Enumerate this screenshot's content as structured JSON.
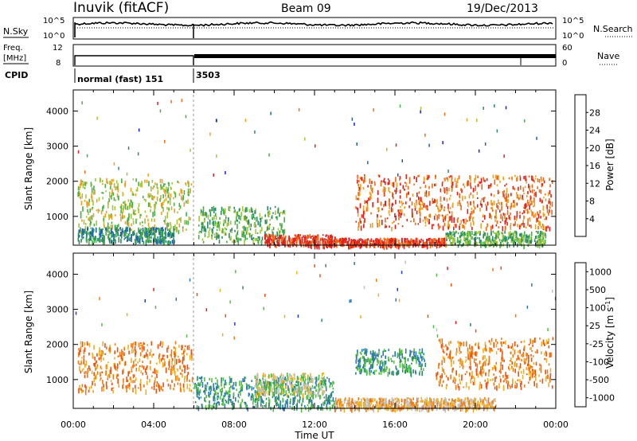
{
  "header": {
    "station": "Inuvik (fitACF)",
    "beam": "Beam 09",
    "date": "19/Dec/2013"
  },
  "top_panels": {
    "nsky_label": "N.Sky",
    "nsky_ticks": [
      "10^5",
      "10^0"
    ],
    "nsearch_label": "N.Search",
    "nsearch_ticks": [
      "10^5",
      "10^0"
    ],
    "freq_label_1": "Freq.",
    "freq_label_2": "[MHz]",
    "freq_ticks": [
      "12",
      "8"
    ],
    "nave_label": "Nave",
    "nave_ticks": [
      "60",
      "0"
    ],
    "cpid_label": "CPID",
    "cpid_segments": [
      "normal (fast) 151",
      "3503"
    ]
  },
  "chart_data": [
    {
      "type": "heatmap",
      "title": "",
      "xlabel": "Time UT",
      "ylabel": "Slant Range [km]",
      "xlim": [
        "00:00",
        "00:00"
      ],
      "xticks": [
        "00:00",
        "04:00",
        "08:00",
        "12:00",
        "16:00",
        "20:00",
        "00:00"
      ],
      "ylim": [
        180,
        4600
      ],
      "yticks": [
        "1000",
        "2000",
        "3000",
        "4000"
      ],
      "colorbar": {
        "label": "Power [dB]",
        "ticks": [
          "4",
          "8",
          "12",
          "16",
          "20",
          "24",
          "28"
        ],
        "colors": [
          "#1b1be8",
          "#1f5fb0",
          "#2e8a66",
          "#44b244",
          "#a8c43a",
          "#f0a020",
          "#f06a14",
          "#e02020"
        ]
      },
      "scatter_regions": [
        {
          "t0": 0.2,
          "t1": 5.9,
          "r0": 600,
          "r1": 2100,
          "level": 4
        },
        {
          "t0": 0.2,
          "t1": 5.0,
          "r0": 300,
          "r1": 700,
          "level": 2
        },
        {
          "t0": 6.2,
          "t1": 10.5,
          "r0": 300,
          "r1": 1300,
          "level": 3
        },
        {
          "t0": 9.5,
          "t1": 13.0,
          "r0": 200,
          "r1": 500,
          "level": 7
        },
        {
          "t0": 12.5,
          "t1": 18.5,
          "r0": 200,
          "r1": 400,
          "level": 7
        },
        {
          "t0": 14.0,
          "t1": 23.8,
          "r0": 700,
          "r1": 2200,
          "level": 6
        },
        {
          "t0": 18.5,
          "t1": 23.5,
          "r0": 200,
          "r1": 600,
          "level": 3
        }
      ]
    },
    {
      "type": "heatmap",
      "title": "",
      "xlabel": "Time UT",
      "ylabel": "Slant Range [km]",
      "xlim": [
        "00:00",
        "00:00"
      ],
      "xticks": [
        "00:00",
        "04:00",
        "08:00",
        "12:00",
        "16:00",
        "20:00",
        "00:00"
      ],
      "ylim": [
        180,
        4600
      ],
      "yticks": [
        "1000",
        "2000",
        "3000",
        "4000"
      ],
      "colorbar": {
        "label": "Velocity [m s^-1]",
        "ticks": [
          "1000",
          "500",
          "100",
          "25",
          "-25",
          "-100",
          "-500",
          "-1000"
        ],
        "colors": [
          "#1b3ecc",
          "#2878c0",
          "#2e8a66",
          "#50c040",
          "#c0c0c0",
          "#f0b020",
          "#f07a18",
          "#f05010",
          "#e01e1e"
        ]
      },
      "scatter_regions": [
        {
          "t0": 0.2,
          "t1": 5.9,
          "r0": 700,
          "r1": 2100,
          "level": 6
        },
        {
          "t0": 6.0,
          "t1": 13.0,
          "r0": 200,
          "r1": 1100,
          "level": 2
        },
        {
          "t0": 9.0,
          "t1": 12.5,
          "r0": 600,
          "r1": 1200,
          "level": 4
        },
        {
          "t0": 14.0,
          "t1": 17.5,
          "r0": 1200,
          "r1": 1900,
          "level": 2
        },
        {
          "t0": 18.0,
          "t1": 23.8,
          "r0": 800,
          "r1": 2200,
          "level": 6
        },
        {
          "t0": 13.0,
          "t1": 21.0,
          "r0": 200,
          "r1": 500,
          "level": 5
        }
      ]
    }
  ]
}
